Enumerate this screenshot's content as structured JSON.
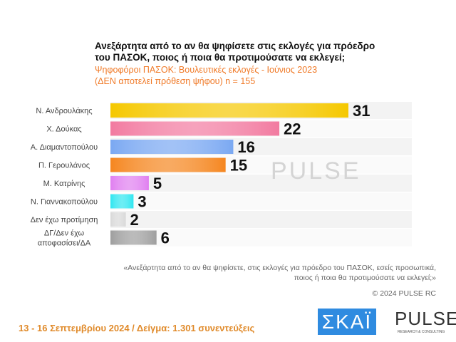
{
  "header": {
    "title": "Ανεξάρτητα από το αν θα ψηφίσετε στις εκλογές για πρόεδρο του ΠΑΣΟΚ, ποιος ή ποια θα προτιμούσατε να εκλεγεί;",
    "subtitle1": "Ψηφοφόροι ΠΑΣΟΚ: Βουλευτικές εκλογές - Ιούνιος 2023",
    "subtitle2": "(ΔΕΝ αποτελεί πρόθεση ψήφου)   n = 155"
  },
  "chart_data": {
    "type": "bar",
    "orientation": "horizontal",
    "categories": [
      "Ν. Ανδρουλάκης",
      "Χ. Δούκας",
      "Α. Διαμαντοπούλου",
      "Π. Γερουλάνος",
      "Μ. Κατρίνης",
      "Ν. Γιαννακοπούλου",
      "Δεν έχω προτίμηση",
      "ΔΓ/Δεν έχω αποφασίσει/ΔΑ"
    ],
    "values": [
      31,
      22,
      16,
      15,
      5,
      3,
      2,
      6
    ],
    "colors": [
      "#f5c800",
      "#f27aa0",
      "#7aa8f2",
      "#f5861f",
      "#e07ef0",
      "#2ee6f0",
      "#d8d8d8",
      "#9e9e9e"
    ],
    "xlim": [
      0,
      39
    ],
    "grid": false
  },
  "watermark": "PULSE",
  "note": {
    "line1": "«Ανεξάρτητα από το αν θα ψηφίσετε, στις εκλογές για πρόεδρο του ΠΑΣΟΚ, εσείς προσωπικά,",
    "line2": "ποιος ή ποια θα προτιμούσατε να εκλεγεί;»"
  },
  "copyright": "© 2024 PULSE RC",
  "footer": "13 - 16 Σεπτεμβρίου 2024  /  Δείγμα:  1.301 συνεντεύξεις",
  "logos": {
    "skai": "ΣΚΑΪ",
    "pulse": "PULSE",
    "pulse_sub": "RESEARCH & CONSULTING"
  }
}
